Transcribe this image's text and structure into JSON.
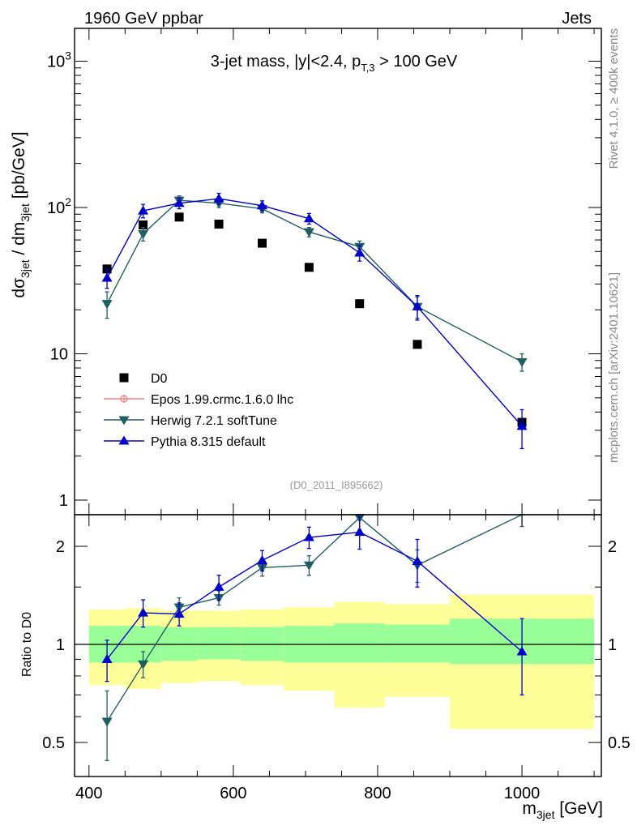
{
  "header": {
    "left": "1960 GeV ppbar",
    "right": "Jets",
    "side_rivet": "Rivet 4.1.0, ≥ 400k events",
    "side_mcplots": "mcplots.cern.ch [arXiv:2401.10621]",
    "analysis_id": "(D0_2011_I895662)"
  },
  "chart_data": [
    {
      "panel": "main",
      "type": "scatter",
      "title": "3-jet mass, |y|<2.4, p_T,3 > 100 GeV",
      "title_parts": {
        "main": "3-jet mass, |y|<2.4, p",
        "sub": "T,3",
        "tail": " > 100 GeV"
      },
      "ylabel_parts": {
        "a": "dσ",
        "a_sub": "3jet",
        "b": " / dm",
        "b_sub": "3jet",
        "c": " [pb/GeV]"
      },
      "yscale": "log",
      "ylim": [
        0.85,
        1800
      ],
      "xlim": [
        380,
        1110
      ],
      "yticks": [
        {
          "value": 1,
          "label": "1"
        },
        {
          "value": 10,
          "label": "10"
        },
        {
          "value": 100,
          "label": "10",
          "sup": "2"
        },
        {
          "value": 1000,
          "label": "10",
          "sup": "3"
        }
      ],
      "legend": [
        "D0",
        "Epos 1.99.crmc.1.6.0 lhc",
        "Herwig 7.2.1 softTune",
        "Pythia 8.315 default"
      ],
      "legend_position": "lower-left",
      "series": [
        {
          "name": "D0",
          "color": "#000000",
          "marker": "square",
          "x": [
            425,
            475,
            525,
            580,
            640,
            705,
            775,
            855,
            1000
          ],
          "y": [
            38,
            76,
            86,
            77,
            57,
            39,
            22,
            11.6,
            3.4
          ]
        },
        {
          "name": "Epos 1.99.crmc.1.6.0 lhc",
          "color": "#f08080",
          "marker": "circle-open",
          "x": [],
          "y": []
        },
        {
          "name": "Herwig 7.2.1 softTune",
          "color": "#1f5f62",
          "marker": "triangle-down",
          "x": [
            425,
            475,
            525,
            580,
            640,
            705,
            775,
            855,
            1000
          ],
          "y": [
            22,
            66,
            112,
            107,
            98,
            68,
            54,
            21,
            8.8
          ],
          "err_lo": [
            4.5,
            7,
            8,
            7,
            6,
            5,
            5,
            3.5,
            1.2
          ],
          "err_hi": [
            4.5,
            7,
            8,
            7,
            6,
            5,
            5,
            3.5,
            1.2
          ]
        },
        {
          "name": "Pythia 8.315 default",
          "color": "#0000cc",
          "marker": "triangle-up",
          "x": [
            425,
            475,
            525,
            580,
            640,
            705,
            775,
            855,
            1000
          ],
          "y": [
            33,
            95,
            107,
            115,
            103,
            84,
            49,
            21,
            3.2
          ],
          "err_lo": [
            5,
            10,
            9,
            10,
            8,
            7,
            6,
            4,
            0.95
          ],
          "err_hi": [
            5,
            10,
            9,
            10,
            8,
            7,
            6,
            4,
            0.95
          ]
        }
      ]
    },
    {
      "panel": "ratio",
      "type": "line",
      "ylabel": "Ratio to D0",
      "xlabel": "m",
      "xlabel_sub": "3jet",
      "xlabel_tail": " [GeV]",
      "yscale": "log",
      "ylim": [
        0.4,
        2.5
      ],
      "xlim": [
        380,
        1110
      ],
      "xticks": [
        400,
        600,
        800,
        1000
      ],
      "yticks": [
        0.5,
        1,
        2
      ],
      "reference_line": 1,
      "bands": {
        "edges": [
          400,
          450,
          500,
          550,
          610,
          670,
          740,
          810,
          900,
          1100
        ],
        "stat_lo": [
          0.88,
          0.88,
          0.89,
          0.9,
          0.89,
          0.88,
          0.88,
          0.88,
          0.87
        ],
        "stat_hi": [
          1.14,
          1.14,
          1.13,
          1.13,
          1.13,
          1.14,
          1.16,
          1.15,
          1.2
        ],
        "total_lo": [
          0.75,
          0.73,
          0.76,
          0.77,
          0.75,
          0.72,
          0.64,
          0.69,
          0.55
        ],
        "total_hi": [
          1.28,
          1.29,
          1.27,
          1.27,
          1.28,
          1.3,
          1.35,
          1.33,
          1.42
        ],
        "stat_color": "#99ff99",
        "total_color": "#ffff99"
      },
      "series": [
        {
          "name": "Herwig 7.2.1 softTune",
          "color": "#1f5f62",
          "marker": "triangle-down",
          "x": [
            425,
            475,
            525,
            580,
            640,
            705,
            775,
            855,
            1000
          ],
          "y": [
            0.58,
            0.87,
            1.3,
            1.39,
            1.72,
            1.75,
            2.45,
            1.75,
            2.6
          ],
          "err_lo": [
            0.14,
            0.08,
            0.09,
            0.07,
            0.1,
            0.12,
            0.2,
            0.2,
            0.3
          ],
          "err_hi": [
            0.14,
            0.08,
            0.09,
            0.07,
            0.1,
            0.12,
            0.2,
            0.2,
            0.3
          ]
        },
        {
          "name": "Pythia 8.315 default",
          "color": "#0000cc",
          "marker": "triangle-up",
          "x": [
            425,
            475,
            525,
            580,
            640,
            705,
            775,
            855,
            1000
          ],
          "y": [
            0.9,
            1.25,
            1.24,
            1.5,
            1.81,
            2.13,
            2.21,
            1.8,
            0.95
          ],
          "err_lo": [
            0.13,
            0.12,
            0.1,
            0.13,
            0.13,
            0.16,
            0.25,
            0.3,
            0.25
          ],
          "err_hi": [
            0.13,
            0.12,
            0.1,
            0.13,
            0.13,
            0.16,
            0.25,
            0.3,
            0.25
          ]
        }
      ]
    }
  ]
}
